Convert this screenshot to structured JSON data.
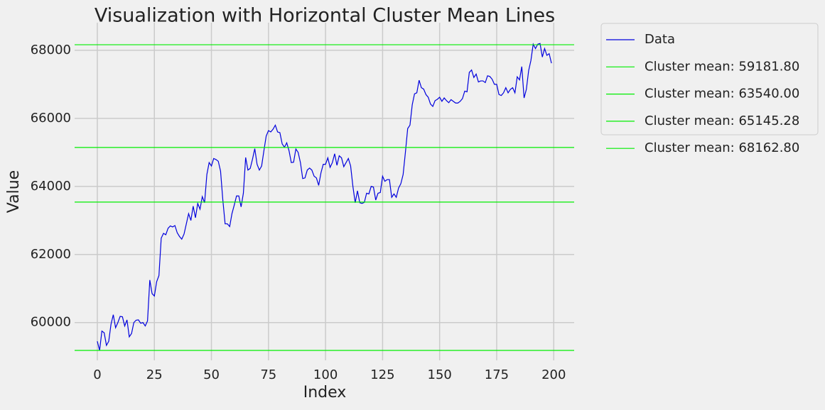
{
  "chart_data": {
    "type": "line",
    "title": "Visualization with Horizontal Cluster Mean Lines",
    "xlabel": "Index",
    "ylabel": "Value",
    "xlim": [
      -9.95,
      208.95
    ],
    "ylim": [
      58890,
      68810
    ],
    "xticks": [
      0,
      25,
      50,
      75,
      100,
      125,
      150,
      175,
      200
    ],
    "yticks": [
      60000,
      62000,
      64000,
      66000,
      68000
    ],
    "grid": true,
    "series": [
      {
        "name": "Data",
        "color": "#0000dd",
        "values": [
          59450,
          59180,
          59750,
          59700,
          59330,
          59450,
          59950,
          60230,
          59850,
          60000,
          60180,
          60170,
          59900,
          60080,
          59580,
          59680,
          60000,
          60070,
          60080,
          59980,
          60000,
          59900,
          60050,
          61250,
          60850,
          60780,
          61200,
          61380,
          62480,
          62620,
          62580,
          62770,
          62840,
          62810,
          62850,
          62640,
          62530,
          62450,
          62600,
          62900,
          63200,
          63000,
          63420,
          63080,
          63500,
          63330,
          63700,
          63520,
          64350,
          64700,
          64600,
          64820,
          64790,
          64740,
          64450,
          63600,
          62900,
          62900,
          62820,
          63200,
          63450,
          63720,
          63720,
          63400,
          63800,
          64850,
          64480,
          64530,
          64800,
          65110,
          64650,
          64480,
          64600,
          65050,
          65480,
          65640,
          65600,
          65680,
          65800,
          65600,
          65580,
          65250,
          65150,
          65280,
          65050,
          64700,
          64710,
          65100,
          65000,
          64700,
          64230,
          64250,
          64480,
          64540,
          64480,
          64300,
          64250,
          64030,
          64400,
          64650,
          64650,
          64840,
          64560,
          64700,
          64960,
          64620,
          64900,
          64840,
          64580,
          64700,
          64820,
          64600,
          64000,
          63520,
          63870,
          63520,
          63500,
          63530,
          63800,
          63780,
          64000,
          63980,
          63600,
          63800,
          63820,
          64300,
          64150,
          64200,
          64200,
          63680,
          63780,
          63680,
          63950,
          64080,
          64350,
          65000,
          65700,
          65800,
          66400,
          66720,
          66750,
          67120,
          66900,
          66860,
          66700,
          66620,
          66420,
          66350,
          66520,
          66560,
          66620,
          66500,
          66600,
          66520,
          66460,
          66550,
          66500,
          66450,
          66450,
          66500,
          66580,
          66800,
          66780,
          67350,
          67420,
          67200,
          67300,
          67070,
          67100,
          67100,
          67050,
          67250,
          67230,
          67150,
          67000,
          67000,
          66700,
          66670,
          66750,
          66900,
          66750,
          66850,
          66900,
          66750,
          67220,
          67130,
          67520,
          66600,
          66850,
          67400,
          67700,
          68180,
          68050,
          68180,
          68200,
          67800,
          68050,
          67850,
          67900,
          67620
        ]
      }
    ],
    "hlines": [
      {
        "name": "Cluster mean: 59181.80",
        "value": 59181.8,
        "color": "#00ee00"
      },
      {
        "name": "Cluster mean: 63540.00",
        "value": 63540.0,
        "color": "#00ee00"
      },
      {
        "name": "Cluster mean: 65145.28",
        "value": 65145.28,
        "color": "#00ee00"
      },
      {
        "name": "Cluster mean: 68162.80",
        "value": 68162.8,
        "color": "#00ee00"
      }
    ]
  }
}
